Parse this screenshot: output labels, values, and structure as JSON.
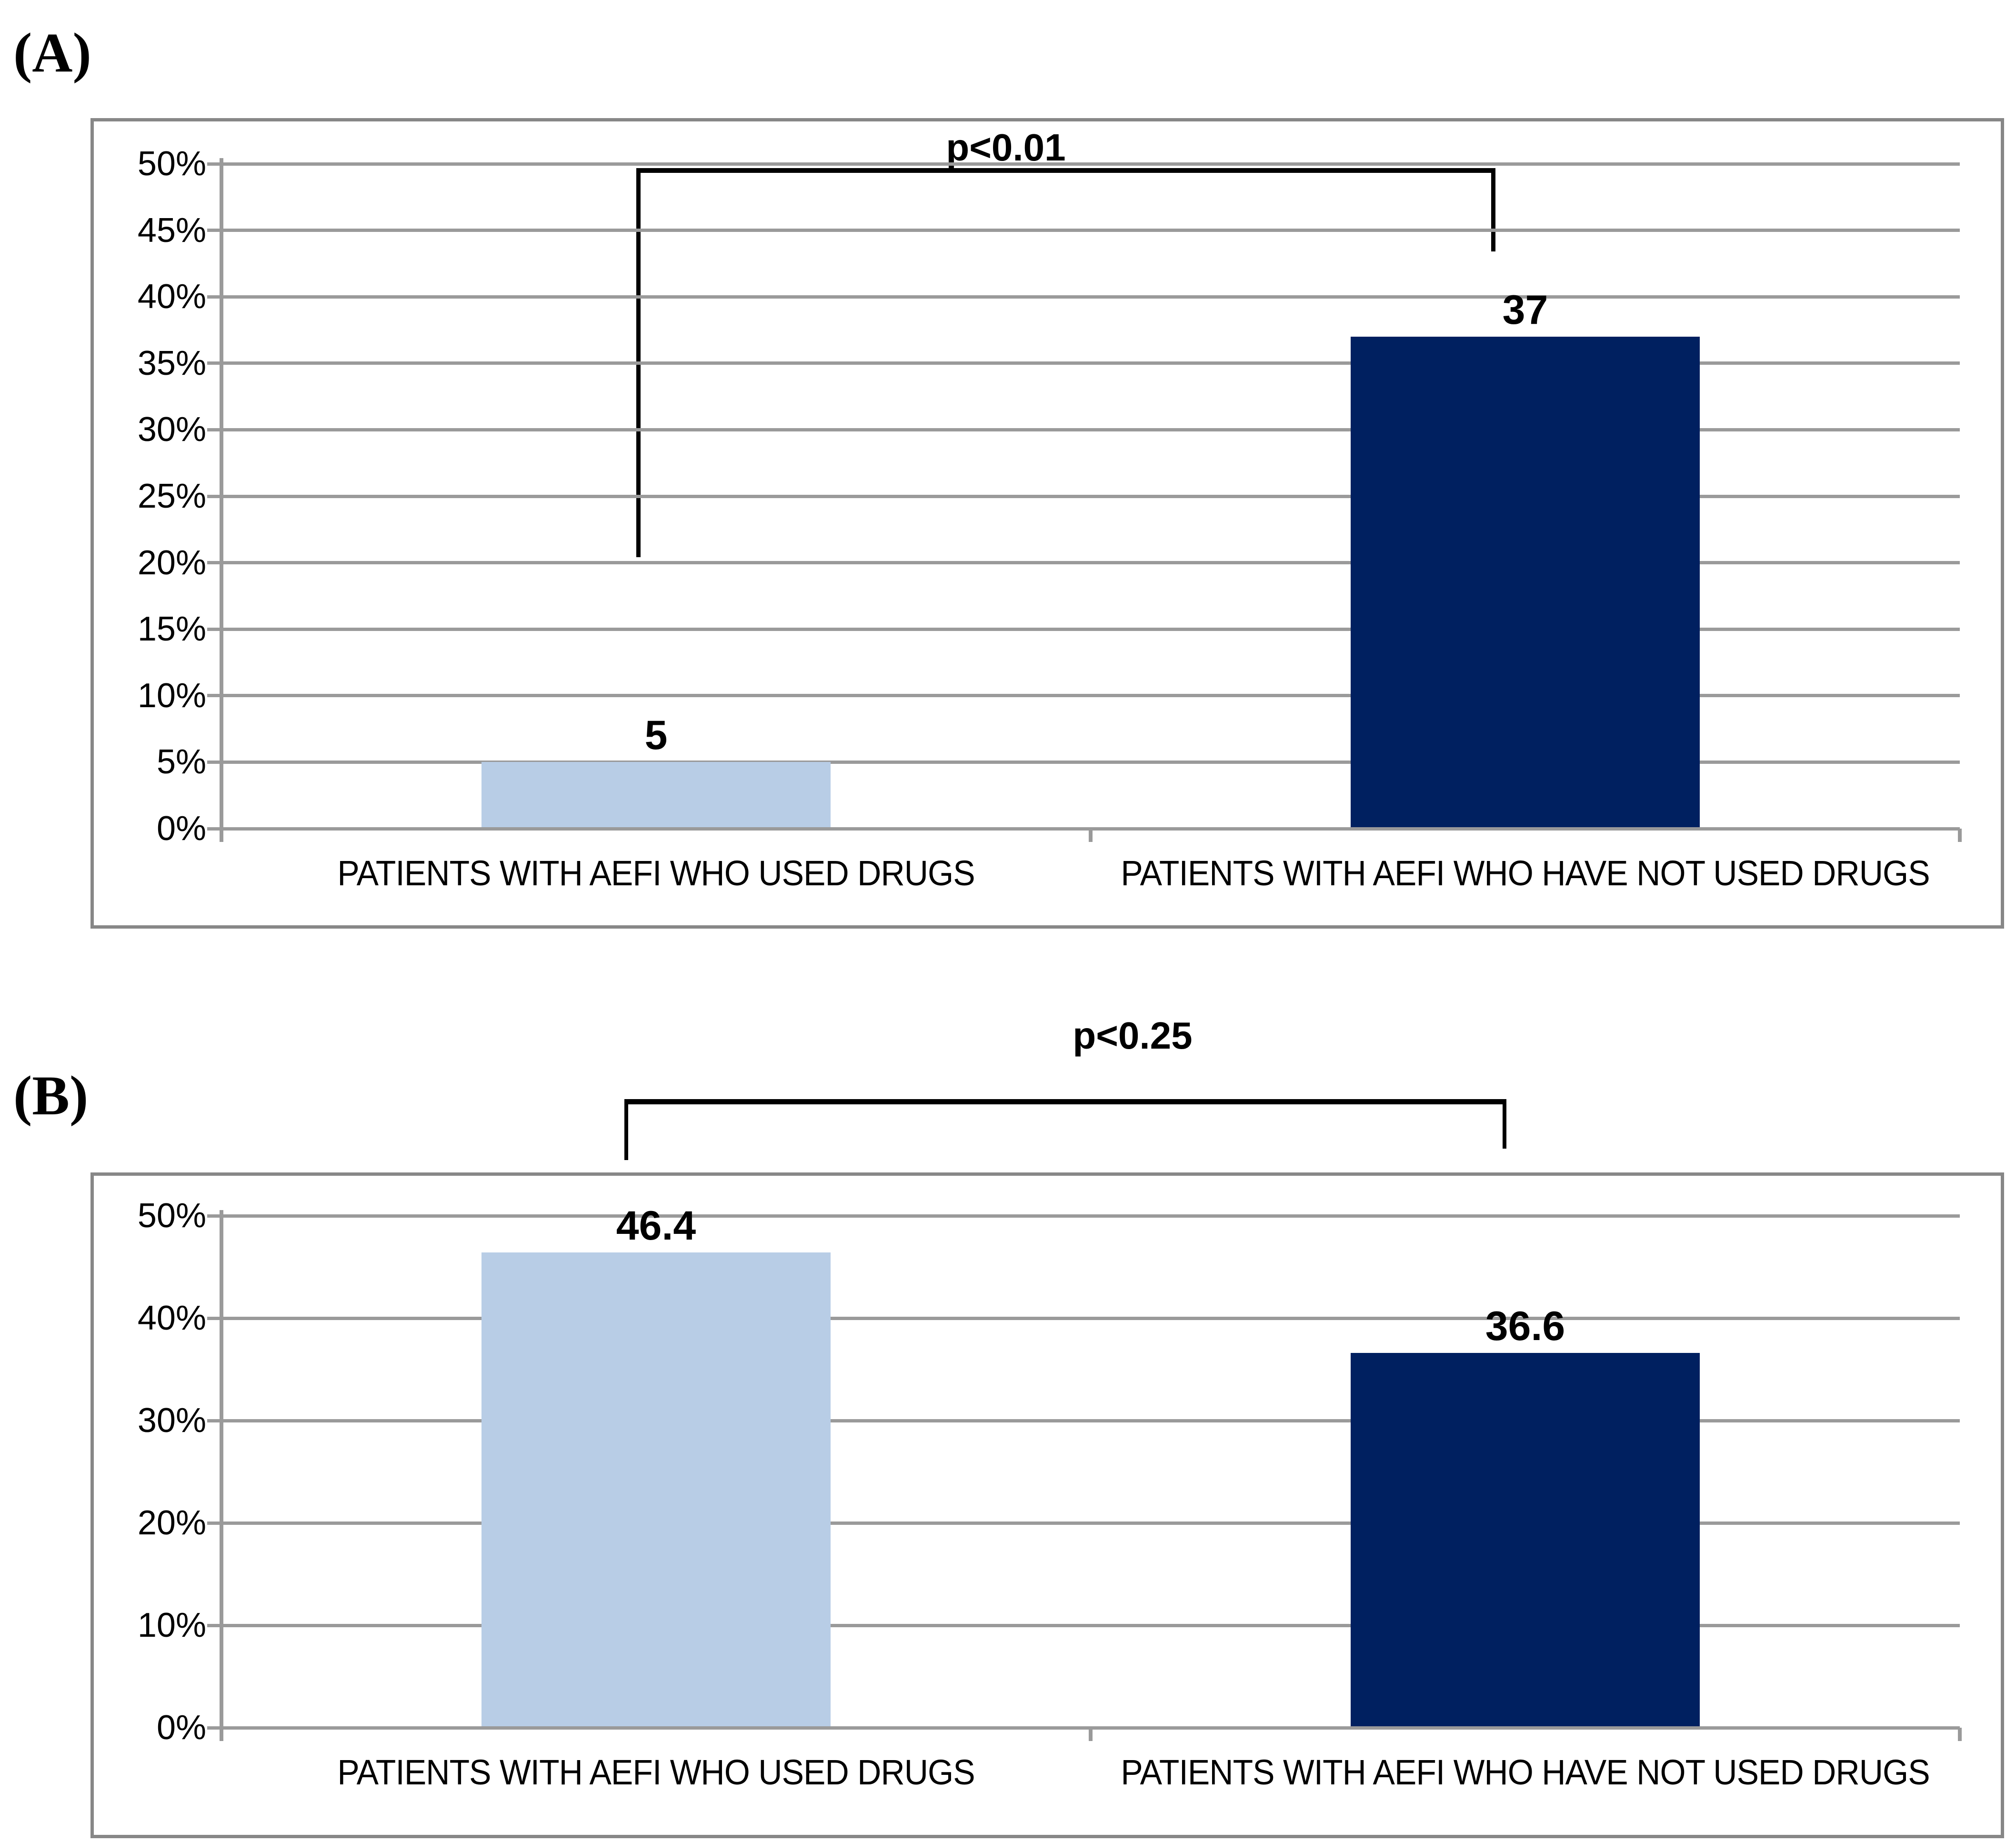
{
  "figure": {
    "panel_a_tag": "(A)",
    "panel_b_tag": "(B)"
  },
  "chart_data": [
    {
      "type": "bar",
      "panel": "A",
      "title": "",
      "categories": [
        "PATIENTS WITH AEFI WHO USED DRUGS",
        "PATIENTS WITH AEFI WHO HAVE NOT USED DRUGS"
      ],
      "values": [
        5,
        37
      ],
      "value_labels": [
        "5",
        "37"
      ],
      "bar_colors": [
        "#b8cde6",
        "#002060"
      ],
      "xlabel": "",
      "ylabel": "",
      "ylim": [
        0,
        50
      ],
      "yticks": [
        0,
        5,
        10,
        15,
        20,
        25,
        30,
        35,
        40,
        45,
        50
      ],
      "ytick_suffix": "%",
      "grid": true,
      "legend_position": "none",
      "annotation": {
        "text": "p<0.01",
        "compares": [
          "PATIENTS WITH AEFI WHO USED DRUGS",
          "PATIENTS WITH AEFI WHO HAVE NOT USED DRUGS"
        ]
      }
    },
    {
      "type": "bar",
      "panel": "B",
      "title": "",
      "categories": [
        "PATIENTS WITH AEFI WHO USED DRUGS",
        "PATIENTS WITH AEFI WHO HAVE NOT USED DRUGS"
      ],
      "values": [
        46.4,
        36.6
      ],
      "value_labels": [
        "46.4",
        "36.6"
      ],
      "bar_colors": [
        "#b8cde6",
        "#002060"
      ],
      "xlabel": "",
      "ylabel": "",
      "ylim": [
        0,
        50
      ],
      "yticks": [
        0,
        10,
        20,
        30,
        40,
        50
      ],
      "ytick_suffix": "%",
      "grid": true,
      "legend_position": "none",
      "annotation": {
        "text": "p<0.25",
        "compares": [
          "PATIENTS WITH AEFI WHO USED DRUGS",
          "PATIENTS WITH AEFI WHO HAVE NOT USED DRUGS"
        ]
      }
    }
  ]
}
